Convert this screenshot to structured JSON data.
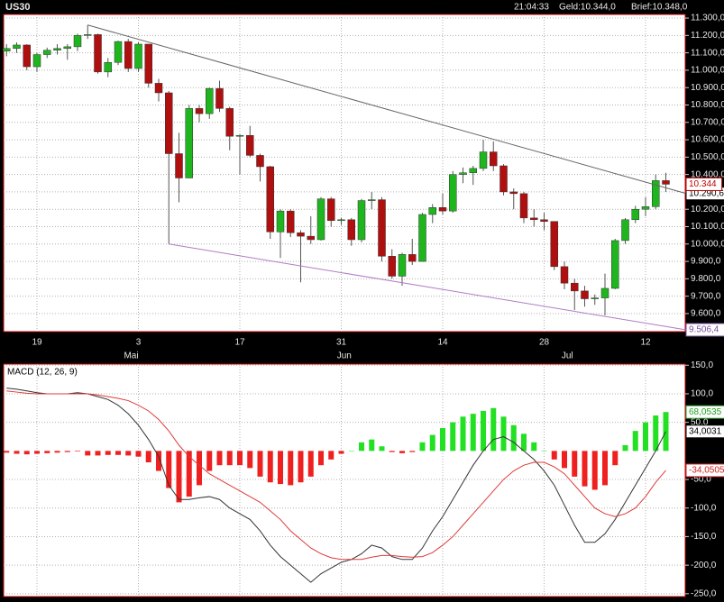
{
  "header": {
    "symbol": "US30",
    "time": "21:04:33",
    "bid": "Geld:10.344,0",
    "ask": "Brief:10.348,0"
  },
  "chart_data": [
    {
      "type": "candlestick",
      "title": "US30",
      "categories": [
        null,
        null,
        null,
        "19",
        null,
        null,
        null,
        null,
        null,
        null,
        null,
        null,
        null,
        "3",
        null,
        null,
        null,
        null,
        null,
        null,
        null,
        null,
        null,
        "17",
        null,
        null,
        null,
        null,
        null,
        null,
        null,
        null,
        null,
        "31",
        null,
        null,
        null,
        null,
        null,
        null,
        null,
        null,
        null,
        "14",
        null,
        null,
        null,
        null,
        null,
        null,
        null,
        null,
        null,
        "28",
        null,
        null,
        null,
        null,
        null,
        null,
        null,
        null,
        null,
        "12",
        null,
        null
      ],
      "months": [
        null,
        null,
        null,
        null,
        null,
        null,
        null,
        null,
        null,
        null,
        null,
        null,
        null,
        "Mai",
        null,
        null,
        null,
        null,
        null,
        null,
        null,
        null,
        null,
        null,
        null,
        null,
        null,
        null,
        null,
        null,
        null,
        null,
        null,
        null,
        "Jun",
        null,
        null,
        null,
        null,
        null,
        null,
        null,
        null,
        null,
        null,
        null,
        null,
        null,
        null,
        null,
        null,
        null,
        null,
        null,
        null,
        null,
        "Jul",
        null,
        null,
        null,
        null,
        null,
        null,
        null,
        null,
        null
      ],
      "open": [
        11110,
        11125,
        11145,
        11020,
        11090,
        11115,
        11125,
        11135,
        11200,
        11205,
        10990,
        11045,
        11165,
        11010,
        11150,
        10925,
        10870,
        10520,
        10380,
        10780,
        10750,
        10895,
        10780,
        10620,
        10625,
        10510,
        10445,
        10070,
        10190,
        10065,
        10045,
        10025,
        10260,
        10135,
        10140,
        10025,
        10250,
        10255,
        9930,
        9815,
        9940,
        9900,
        10170,
        10210,
        10190,
        10400,
        10410,
        10435,
        10530,
        10450,
        10300,
        10290,
        10150,
        10140,
        10130,
        9870,
        9775,
        9730,
        9685,
        9690,
        9745,
        10020,
        10140,
        10200,
        10215,
        10365
      ],
      "high": [
        11150,
        11160,
        11150,
        11100,
        11130,
        11150,
        11150,
        11210,
        11260,
        11210,
        11070,
        11170,
        11180,
        11160,
        11150,
        10950,
        10880,
        10640,
        10800,
        10800,
        10900,
        10940,
        10790,
        10630,
        10680,
        10520,
        10450,
        10200,
        10200,
        10080,
        10160,
        10270,
        10270,
        10150,
        10150,
        10260,
        10300,
        10270,
        9970,
        9950,
        10030,
        10180,
        10230,
        10290,
        10420,
        10440,
        10450,
        10600,
        10590,
        10460,
        10320,
        10300,
        10200,
        10180,
        10130,
        9900,
        9800,
        9760,
        9710,
        9830,
        10030,
        10150,
        10220,
        10270,
        10400,
        10410
      ],
      "low": [
        11080,
        11100,
        11000,
        10990,
        11070,
        11090,
        11060,
        11110,
        11180,
        10980,
        10960,
        11030,
        10990,
        10990,
        10900,
        10820,
        10000,
        10240,
        10380,
        10700,
        10720,
        10760,
        10540,
        10400,
        10500,
        10360,
        10030,
        9920,
        10040,
        9780,
        10000,
        10020,
        10100,
        10110,
        9990,
        10010,
        10200,
        9900,
        9800,
        9760,
        9880,
        9900,
        10120,
        10170,
        10180,
        10350,
        10340,
        10420,
        10420,
        10280,
        10200,
        10120,
        10100,
        10080,
        9850,
        9740,
        9620,
        9640,
        9650,
        9590,
        9740,
        10000,
        10120,
        10160,
        10200,
        10300
      ],
      "close": [
        11125,
        11145,
        11020,
        11090,
        11115,
        11125,
        11135,
        11200,
        11205,
        10990,
        11045,
        11165,
        11010,
        11150,
        10925,
        10870,
        10520,
        10380,
        10780,
        10750,
        10895,
        10780,
        10620,
        10625,
        10510,
        10445,
        10070,
        10190,
        10065,
        10045,
        10025,
        10260,
        10135,
        10140,
        10025,
        10250,
        10255,
        9930,
        9815,
        9940,
        9900,
        10170,
        10210,
        10190,
        10400,
        10410,
        10435,
        10530,
        10450,
        10300,
        10290,
        10150,
        10140,
        10130,
        9870,
        9775,
        9730,
        9685,
        9690,
        9745,
        10020,
        10140,
        10200,
        10215,
        10365,
        10344
      ],
      "last_label": "10.344",
      "up_color": "#1fb51f",
      "down_color": "#b00f0f",
      "ylim": [
        9496,
        11321
      ],
      "yticks": [
        {
          "value": 9600,
          "label": "9.600,0"
        },
        {
          "value": 9700,
          "label": "9.700,0"
        },
        {
          "value": 9800,
          "label": "9.800,0"
        },
        {
          "value": 9900,
          "label": "9.900,0"
        },
        {
          "value": 10000,
          "label": "10.000,0"
        },
        {
          "value": 10100,
          "label": "10.100,0"
        },
        {
          "value": 10200,
          "label": "10.200,0"
        },
        {
          "value": 10300,
          "label": "10.300,0"
        },
        {
          "value": 10400,
          "label": "10.400,0"
        },
        {
          "value": 10500,
          "label": "10.500,0"
        },
        {
          "value": 10600,
          "label": "10.600,0"
        },
        {
          "value": 10700,
          "label": "10.700,0"
        },
        {
          "value": 10800,
          "label": "10.800,0"
        },
        {
          "value": 10900,
          "label": "10.900,0"
        },
        {
          "value": 11000,
          "label": "11.000,0"
        },
        {
          "value": 11100,
          "label": "11.100,0"
        },
        {
          "value": 11200,
          "label": "11.200,0"
        },
        {
          "value": 11300,
          "label": "11.300,0"
        }
      ],
      "grid": true,
      "trendlines": [
        {
          "start": [
            8,
            11260
          ],
          "end": [
            67,
            10290.6
          ],
          "label": "10.290,6",
          "color": "#666666"
        },
        {
          "start": [
            16,
            10000
          ],
          "end": [
            67,
            9506.4
          ],
          "label": "9.506,4",
          "color": "#b07cc6"
        }
      ]
    },
    {
      "type": "macd",
      "title": "MACD (12, 26, 9)",
      "ylim": [
        -255,
        152
      ],
      "yticks": [
        {
          "value": 150,
          "label": "150,0"
        },
        {
          "value": 100,
          "label": "100,0"
        },
        {
          "value": 50,
          "label": "50,0"
        },
        {
          "value": -50,
          "label": "-50,0"
        },
        {
          "value": -100,
          "label": "-100,0"
        },
        {
          "value": -150,
          "label": "-150,0"
        },
        {
          "value": -200,
          "label": "-200,0"
        },
        {
          "value": -250,
          "label": "-250,0"
        }
      ],
      "grid": true,
      "histogram": {
        "up_color": "#22e022",
        "down_color": "#ee2020",
        "last_label": "68,0535",
        "values": [
          -3,
          -5,
          -6,
          -5,
          -4,
          -3,
          -2,
          -1,
          -8,
          -8,
          -7,
          -7,
          -8,
          -10,
          -20,
          -35,
          -65,
          -90,
          -80,
          -60,
          -35,
          -25,
          -25,
          -25,
          -30,
          -45,
          -55,
          -58,
          -60,
          -55,
          -45,
          -25,
          -15,
          -5,
          0,
          15,
          20,
          8,
          -2,
          -4,
          -2,
          15,
          28,
          40,
          50,
          60,
          65,
          70,
          75,
          60,
          45,
          30,
          15,
          0,
          -15,
          -30,
          -45,
          -62,
          -68,
          -60,
          -25,
          10,
          35,
          50,
          62,
          68.0535
        ]
      },
      "series": [
        {
          "color": "#333333",
          "last_label": "34,0031",
          "values": [
            110,
            108,
            105,
            102,
            100,
            100,
            100,
            102,
            100,
            95,
            90,
            80,
            65,
            45,
            20,
            -10,
            -60,
            -85,
            -85,
            -82,
            -80,
            -85,
            -100,
            -110,
            -120,
            -140,
            -165,
            -185,
            -200,
            -215,
            -230,
            -215,
            -205,
            -195,
            -190,
            -180,
            -165,
            -170,
            -185,
            -190,
            -190,
            -170,
            -140,
            -115,
            -85,
            -55,
            -25,
            0,
            20,
            25,
            15,
            0,
            -15,
            -35,
            -60,
            -95,
            -130,
            -160,
            -160,
            -145,
            -120,
            -90,
            -60,
            -30,
            0,
            34.0031
          ]
        },
        {
          "color": "#e03a3a",
          "last_label": "-34,0505",
          "values": [
            105,
            103,
            101,
            100,
            100,
            100,
            100,
            100,
            100,
            98,
            95,
            92,
            88,
            80,
            70,
            55,
            35,
            10,
            -10,
            -25,
            -40,
            -50,
            -60,
            -70,
            -80,
            -90,
            -105,
            -120,
            -140,
            -155,
            -170,
            -180,
            -187,
            -190,
            -190,
            -190,
            -186,
            -183,
            -183,
            -185,
            -186,
            -185,
            -178,
            -165,
            -150,
            -130,
            -110,
            -90,
            -70,
            -50,
            -35,
            -25,
            -20,
            -20,
            -28,
            -40,
            -60,
            -80,
            -100,
            -110,
            -115,
            -110,
            -100,
            -80,
            -55,
            -34.0505
          ]
        }
      ]
    }
  ]
}
